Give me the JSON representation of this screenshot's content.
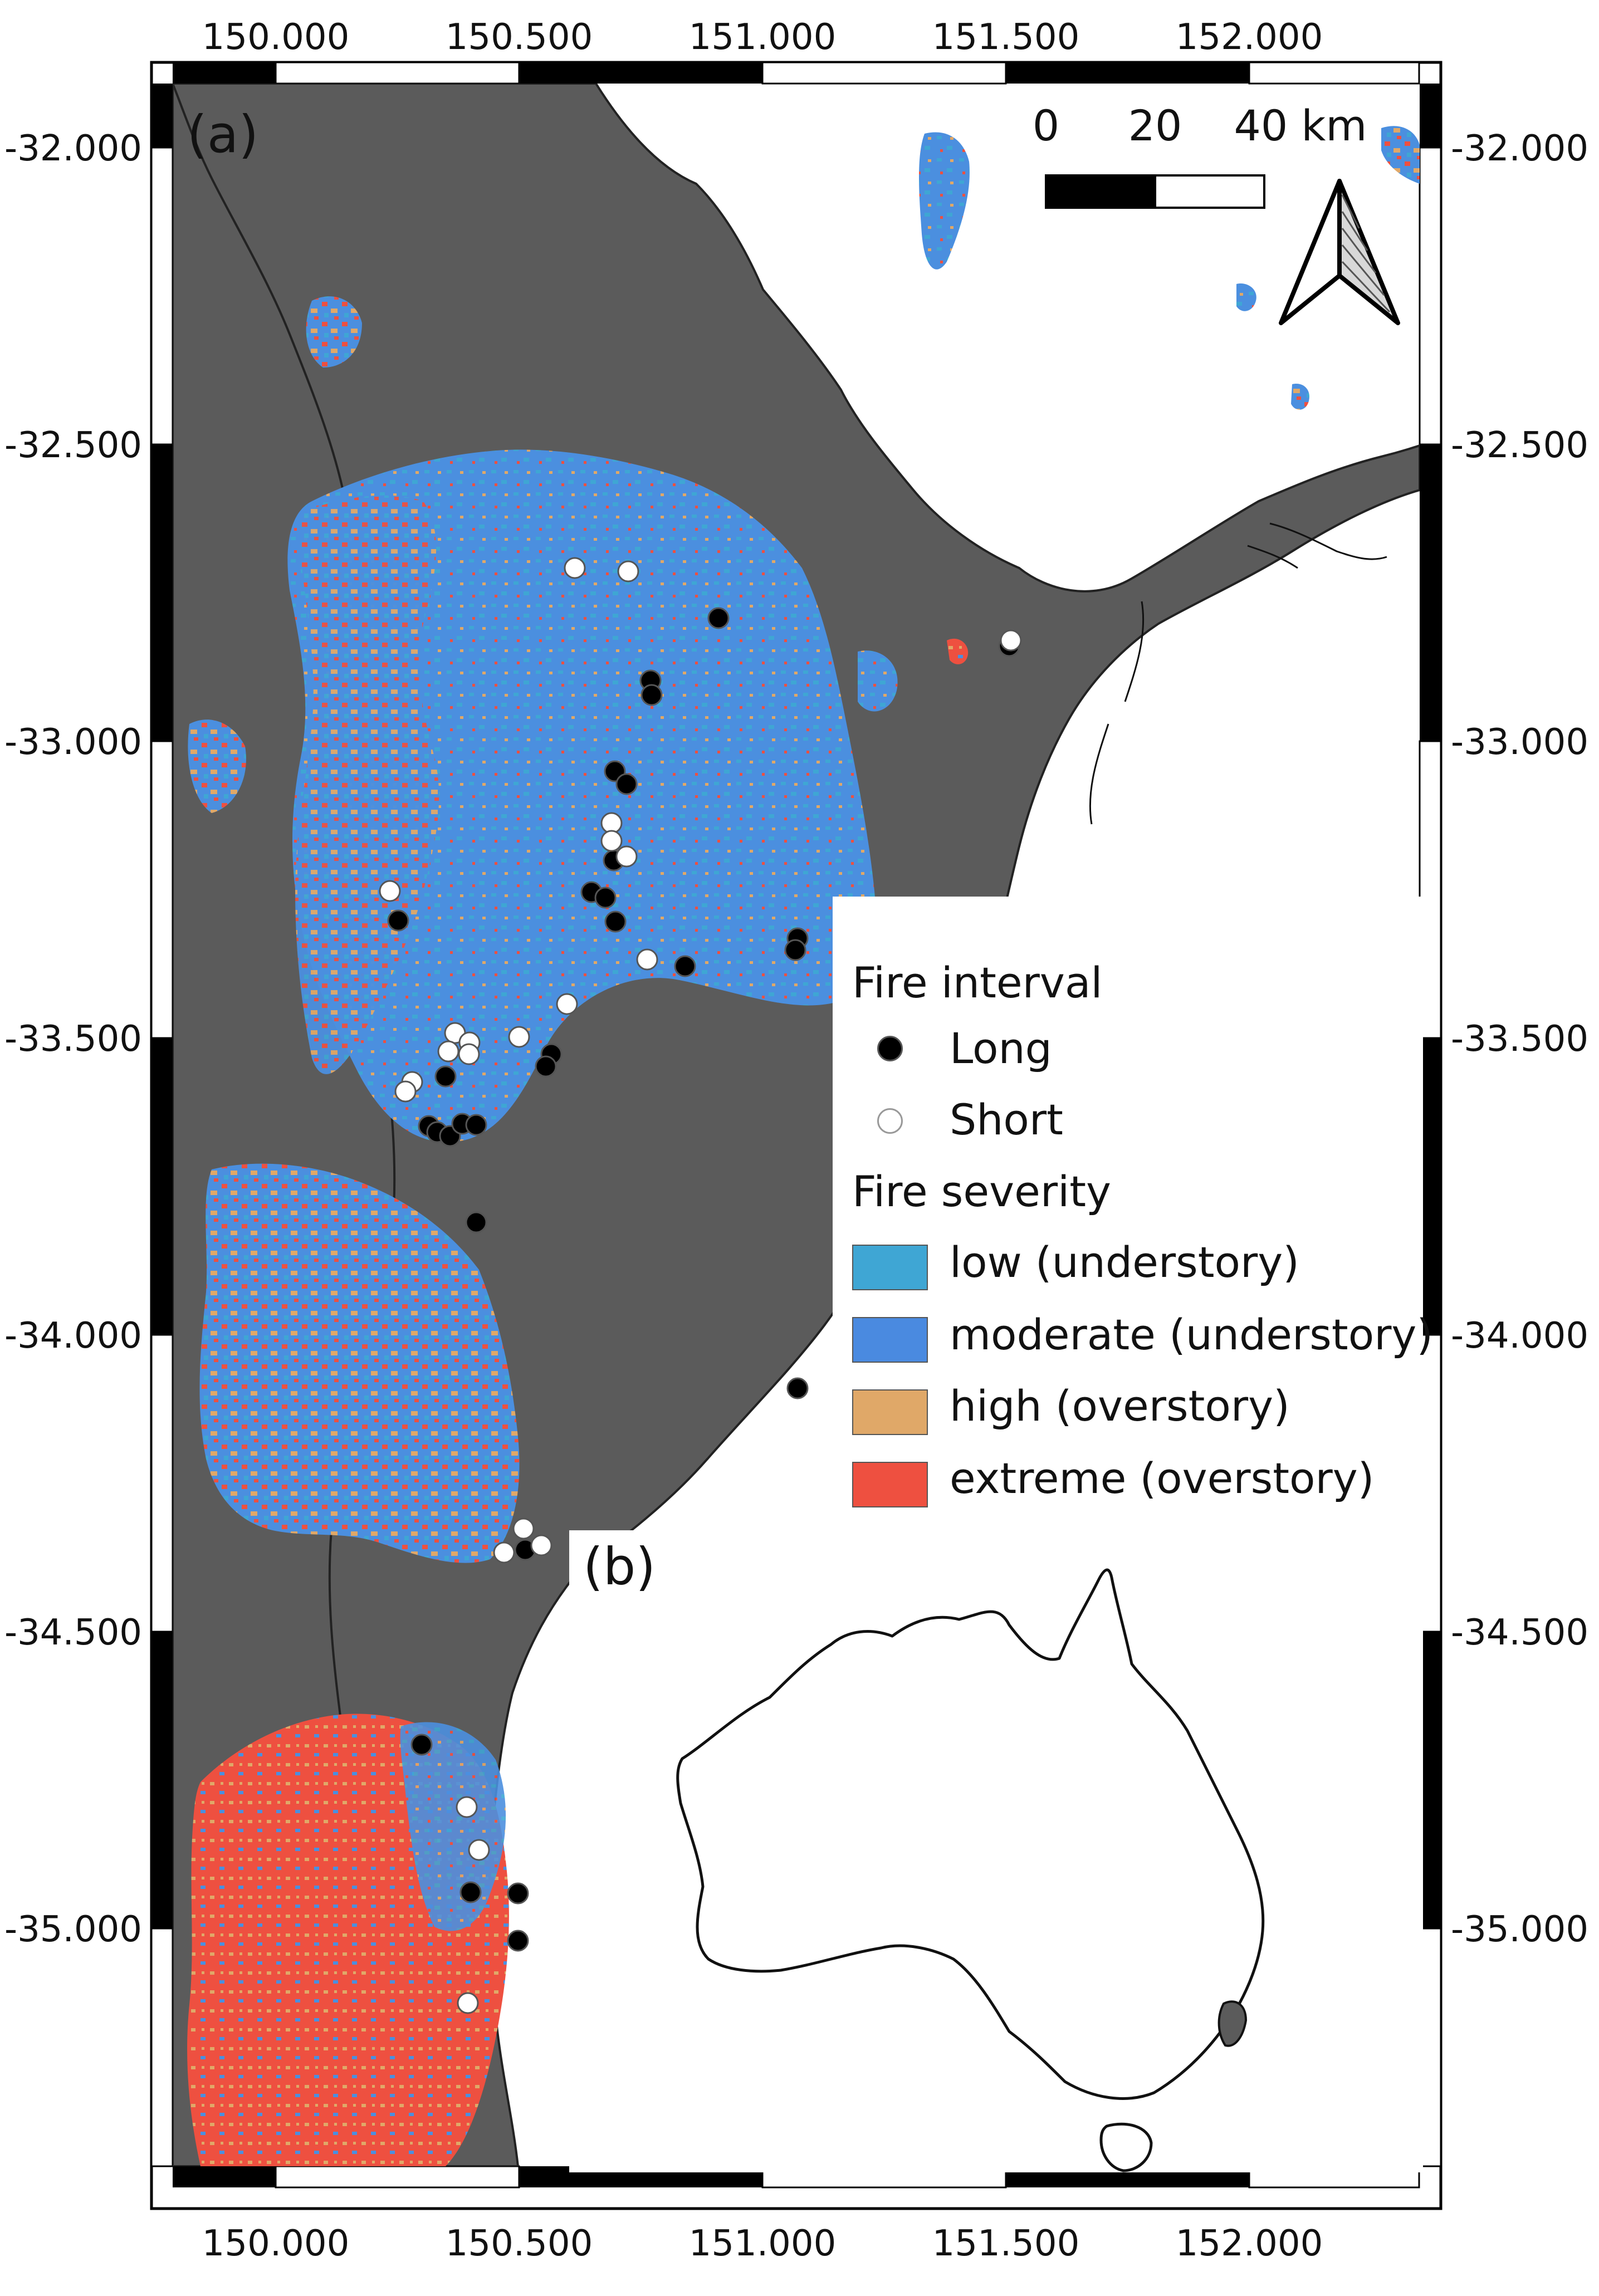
{
  "panel_a_label": "(a)",
  "panel_b_label": "(b)",
  "x_ticks": [
    "150.000",
    "150.500",
    "151.000",
    "151.500",
    "152.000"
  ],
  "y_ticks": [
    "-32.000",
    "-32.500",
    "-33.000",
    "-33.500",
    "-34.000",
    "-34.500",
    "-35.000"
  ],
  "scale_bar": {
    "labels": [
      "0",
      "20",
      "40 km"
    ]
  },
  "north_arrow": "north-arrow-icon",
  "legend": {
    "interval_title": "Fire interval",
    "interval_items": [
      {
        "label": "Long",
        "color": "#000000"
      },
      {
        "label": "Short",
        "color": "#ffffff"
      }
    ],
    "severity_title": "Fire severity",
    "severity_items": [
      {
        "label": "low (understory)",
        "color": "#3fa6d4"
      },
      {
        "label": "moderate (understory)",
        "color": "#4a8ae0"
      },
      {
        "label": "high (overstory)",
        "color": "#e0a868"
      },
      {
        "label": "extreme (overstory)",
        "color": "#ee5040"
      }
    ]
  },
  "colors": {
    "land": "#5b5b5b",
    "sea": "#ffffff",
    "frame": "#000000"
  }
}
